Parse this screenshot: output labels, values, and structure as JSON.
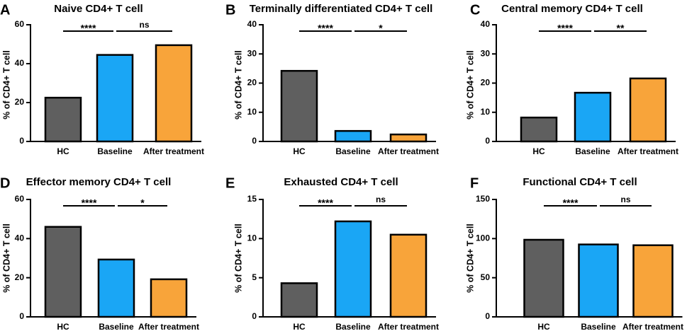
{
  "colors": {
    "HC": "#5f5f5f",
    "Baseline": "#1aa6f5",
    "After treatment": "#f8a43a",
    "axis": "#000000"
  },
  "chart_data": [
    {
      "type": "bar",
      "panel": "A",
      "title": "Naive CD4+ T cell",
      "ylabel": "% of CD4+ T cell",
      "xlabel": "",
      "categories": [
        "HC",
        "Baseline",
        "After treatment"
      ],
      "values": [
        22.5,
        44.5,
        49.5
      ],
      "ylim": [
        0,
        60
      ],
      "yticks": [
        0,
        20,
        40,
        60
      ],
      "significance": [
        {
          "from": 0,
          "to": 1,
          "label": "****"
        },
        {
          "from": 1,
          "to": 2,
          "label": "ns"
        }
      ]
    },
    {
      "type": "bar",
      "panel": "B",
      "title": "Terminally differentiated CD4+ T cell",
      "ylabel": "% of CD4+ T cell",
      "xlabel": "",
      "categories": [
        "HC",
        "Baseline",
        "After treatment"
      ],
      "values": [
        24.2,
        3.6,
        2.4
      ],
      "ylim": [
        0,
        40
      ],
      "yticks": [
        0,
        10,
        20,
        30,
        40
      ],
      "significance": [
        {
          "from": 0,
          "to": 1,
          "label": "****"
        },
        {
          "from": 1,
          "to": 2,
          "label": "*"
        }
      ]
    },
    {
      "type": "bar",
      "panel": "C",
      "title": "Central memory CD4+ T cell",
      "ylabel": "% of CD4+ T cell",
      "xlabel": "",
      "categories": [
        "HC",
        "Baseline",
        "After treatment"
      ],
      "values": [
        8.2,
        16.7,
        21.6
      ],
      "ylim": [
        0,
        40
      ],
      "yticks": [
        0,
        10,
        20,
        30,
        40
      ],
      "significance": [
        {
          "from": 0,
          "to": 1,
          "label": "****"
        },
        {
          "from": 1,
          "to": 2,
          "label": "**"
        }
      ]
    },
    {
      "type": "bar",
      "panel": "D",
      "title": "Effector memory CD4+ T cell",
      "ylabel": "% of CD4+ T cell",
      "xlabel": "",
      "categories": [
        "HC",
        "Baseline",
        "After treatment"
      ],
      "values": [
        46,
        29.3,
        19.2
      ],
      "ylim": [
        0,
        60
      ],
      "yticks": [
        0,
        20,
        40,
        60
      ],
      "significance": [
        {
          "from": 0,
          "to": 1,
          "label": "****"
        },
        {
          "from": 1,
          "to": 2,
          "label": "*"
        }
      ]
    },
    {
      "type": "bar",
      "panel": "E",
      "title": "Exhausted CD4+ T cell",
      "ylabel": "% of CD4+ T cell",
      "xlabel": "",
      "categories": [
        "HC",
        "Baseline",
        "After treatment"
      ],
      "values": [
        4.3,
        12.2,
        10.5
      ],
      "ylim": [
        0,
        15
      ],
      "yticks": [
        0,
        5,
        10,
        15
      ],
      "significance": [
        {
          "from": 0,
          "to": 1,
          "label": "****"
        },
        {
          "from": 1,
          "to": 2,
          "label": "ns"
        }
      ]
    },
    {
      "type": "bar",
      "panel": "F",
      "title": "Functional CD4+ T cell",
      "ylabel": "% of CD4+ T cell",
      "xlabel": "",
      "categories": [
        "HC",
        "Baseline",
        "After treatment"
      ],
      "values": [
        98.5,
        92.5,
        91.5
      ],
      "ylim": [
        0,
        150
      ],
      "yticks": [
        0,
        50,
        100,
        150
      ],
      "significance": [
        {
          "from": 0,
          "to": 1,
          "label": "****"
        },
        {
          "from": 1,
          "to": 2,
          "label": "ns"
        }
      ]
    }
  ]
}
